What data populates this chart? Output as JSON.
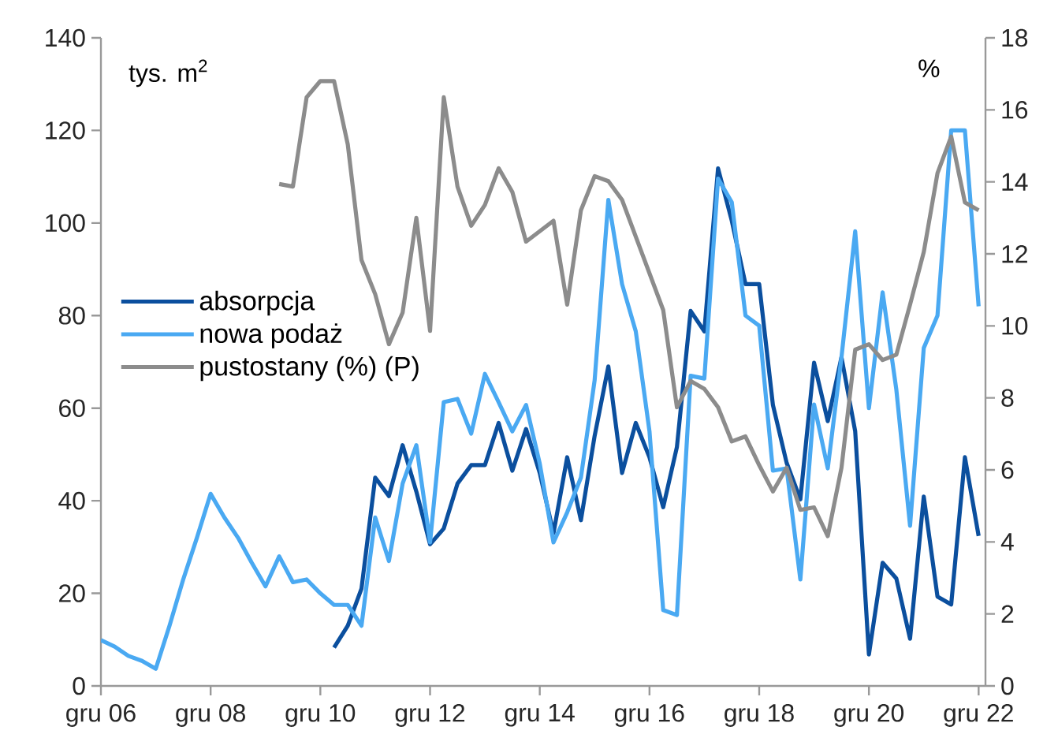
{
  "chart_data": {
    "type": "line",
    "ylabel": "tys. m$^{2}$",
    "y2label": "%",
    "categories": [
      "gru 06",
      null,
      null,
      null,
      null,
      null,
      null,
      null,
      "gru 08",
      null,
      null,
      null,
      null,
      null,
      null,
      null,
      "gru 10",
      null,
      null,
      null,
      null,
      null,
      null,
      null,
      "gru 12",
      null,
      null,
      null,
      null,
      null,
      null,
      null,
      "gru 14",
      null,
      null,
      null,
      null,
      null,
      null,
      null,
      "gru 16",
      null,
      null,
      null,
      null,
      null,
      null,
      null,
      "gru 18",
      null,
      null,
      null,
      null,
      null,
      null,
      null,
      "gru 20",
      null,
      null,
      null,
      null,
      null,
      null,
      null,
      "gru 22"
    ],
    "series": [
      {
        "name": "absorpcja",
        "color": "#0b4f9e",
        "values": [
          null,
          null,
          null,
          null,
          null,
          null,
          null,
          null,
          null,
          null,
          null,
          null,
          null,
          null,
          null,
          null,
          null,
          8.3,
          13,
          21,
          45,
          41,
          52,
          42,
          30.6,
          34,
          43.7,
          47.7,
          47.7,
          56.8,
          46.5,
          55.5,
          46,
          33,
          49.4,
          35.8,
          54,
          69,
          46,
          56.8,
          49.4,
          38.6,
          51.6,
          81,
          76.6,
          111.8,
          100.5,
          86.8,
          86.8,
          60.7,
          48.2,
          40.3,
          69.8,
          57.2,
          71,
          55,
          6.8,
          26.6,
          23.2,
          10.2,
          40.9,
          19.3,
          17.6,
          49.4,
          32.4
        ]
      },
      {
        "name": "nowa podaż",
        "color": "#4aa9f2",
        "values": [
          9.9,
          8.5,
          6.5,
          5.4,
          3.7,
          13,
          23,
          32,
          41.5,
          36.4,
          32,
          26.6,
          21.5,
          28,
          22.4,
          23,
          20,
          17.5,
          17.5,
          13,
          36.4,
          27,
          43.7,
          52,
          31,
          61.3,
          62,
          54.5,
          67.4,
          61.3,
          55,
          60.7,
          48,
          31,
          37.5,
          45,
          66,
          105,
          86.8,
          76.6,
          55,
          16.4,
          15.3,
          67,
          66.4,
          109.6,
          104.5,
          80,
          77.8,
          46.5,
          47,
          23,
          60.8,
          47,
          71,
          98.2,
          60,
          85,
          64,
          34.6,
          73,
          80,
          120,
          120,
          82
        ]
      },
      {
        "name": "pustostany (%) (P)",
        "color": "#8c8c8c",
        "axis": "y2",
        "values": [
          null,
          null,
          null,
          null,
          null,
          null,
          null,
          null,
          null,
          null,
          null,
          null,
          null,
          13.94,
          13.87,
          16.35,
          16.8,
          16.8,
          15.04,
          11.83,
          10.88,
          9.49,
          10.37,
          13.0,
          9.86,
          16.35,
          13.87,
          12.78,
          13.36,
          14.38,
          13.72,
          12.34,
          12.63,
          12.92,
          10.59,
          13.21,
          14.16,
          14.02,
          13.5,
          12.48,
          11.46,
          10.44,
          7.74,
          8.47,
          8.25,
          7.74,
          6.79,
          6.93,
          6.13,
          5.4,
          6.06,
          4.89,
          4.96,
          4.16,
          6.06,
          9.34,
          9.49,
          9.05,
          9.2,
          10.59,
          12.05,
          14.24,
          15.26,
          13.43,
          13.21
        ]
      }
    ],
    "ylim": [
      0,
      140
    ],
    "yticks": [
      0,
      20,
      40,
      60,
      80,
      100,
      120,
      140
    ],
    "y2lim": [
      0,
      18
    ],
    "y2ticks": [
      0,
      2,
      4,
      6,
      8,
      10,
      12,
      14,
      16,
      18
    ],
    "legend": "left",
    "grid": false,
    "marker": "none",
    "line_style": "solid"
  }
}
